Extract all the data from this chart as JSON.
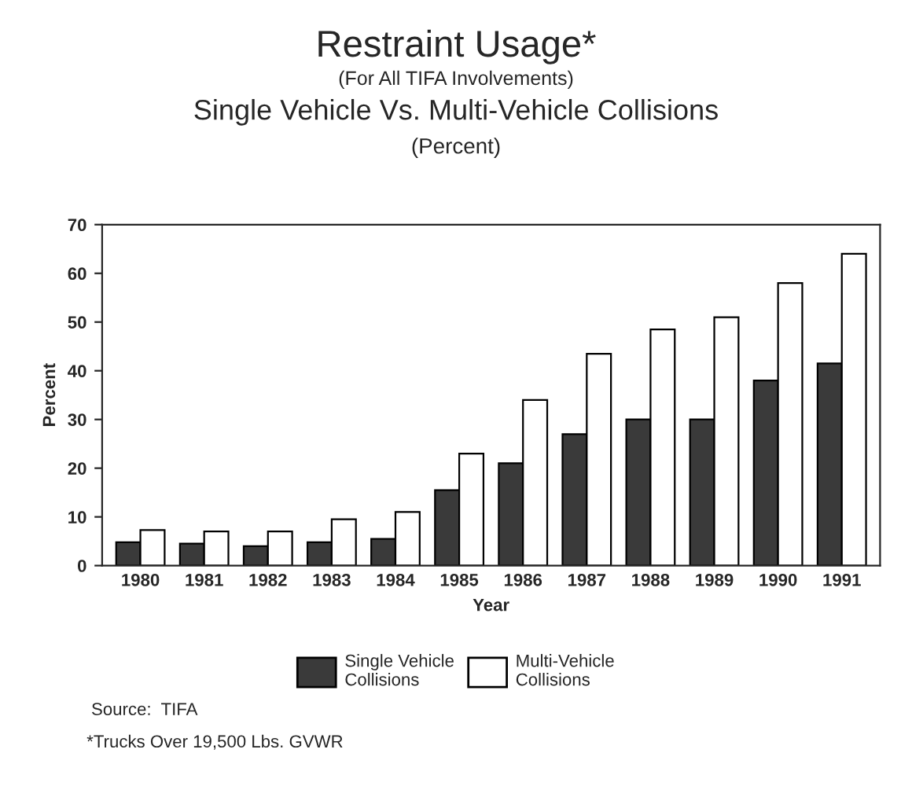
{
  "chart_data": {
    "type": "bar",
    "title": "Restraint Usage*",
    "subtitle": "(For All TIFA Involvements)\nSingle Vehicle Vs. Multi-Vehicle Collisions\n(Percent)",
    "xlabel": "Year",
    "ylabel": "Percent",
    "categories": [
      "1980",
      "1981",
      "1982",
      "1983",
      "1984",
      "1985",
      "1986",
      "1987",
      "1988",
      "1989",
      "1990",
      "1991"
    ],
    "series": [
      {
        "name": "Single Vehicle\nCollisions",
        "color": "#3a3a3a",
        "values": [
          4.8,
          4.5,
          4,
          4.8,
          5.5,
          15.5,
          21,
          27,
          30,
          30,
          38,
          41.5
        ]
      },
      {
        "name": "Multi-Vehicle\nCollisions",
        "color": "#ffffff",
        "values": [
          7.3,
          7,
          7,
          9.5,
          11,
          23,
          34,
          43.5,
          48.5,
          51,
          58,
          64
        ]
      }
    ],
    "ylim": [
      0,
      70
    ],
    "yticks": [
      0,
      10,
      20,
      30,
      40,
      50,
      60,
      70
    ],
    "grid": false,
    "legend": "bottom",
    "annotations": [
      "Source:  TIFA",
      "*Trucks Over 19,500 Lbs. GVWR"
    ]
  }
}
